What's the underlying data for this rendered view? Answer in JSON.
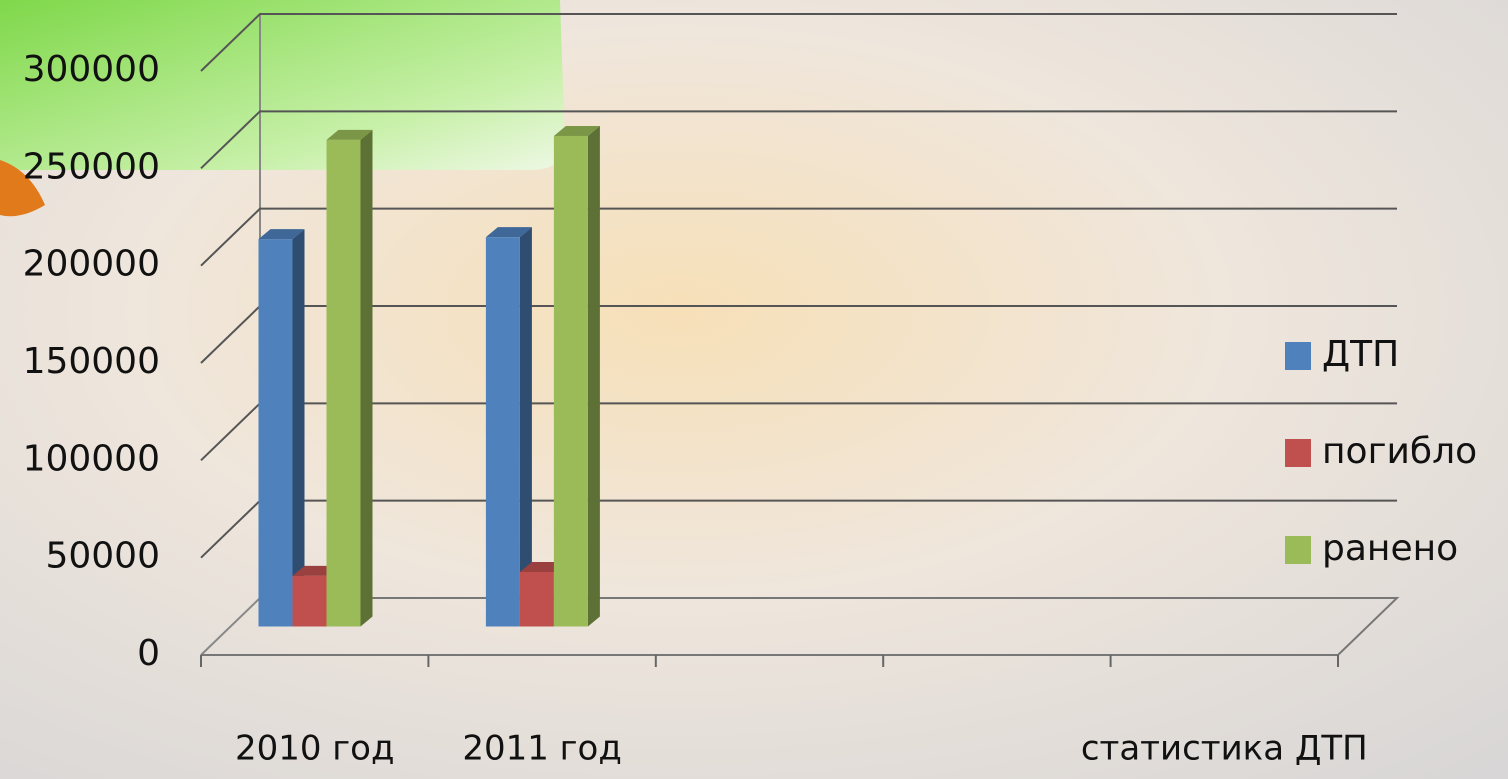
{
  "chart_data": {
    "type": "bar3d",
    "categories": [
      "2010 год",
      "2011 год",
      null,
      null,
      "статистика ДТП"
    ],
    "series": [
      {
        "name": "ДТП",
        "color": "#4f81bd",
        "values": [
          199000,
          200000,
          null,
          null,
          null
        ]
      },
      {
        "name": "погибло",
        "color": "#c0504d",
        "values": [
          26000,
          28000,
          null,
          null,
          null
        ]
      },
      {
        "name": "ранено",
        "color": "#9bbb59",
        "values": [
          250000,
          252000,
          null,
          null,
          null
        ]
      }
    ],
    "ylim": [
      0,
      300000
    ],
    "yticks": [
      0,
      50000,
      100000,
      150000,
      200000,
      250000,
      300000
    ],
    "grid": true,
    "legend": "right"
  }
}
